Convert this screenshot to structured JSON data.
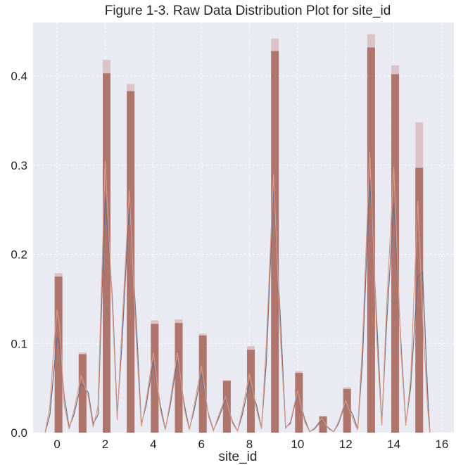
{
  "chart_data": {
    "type": "bar",
    "title": "Figure 1-3.  Raw Data Distribution Plot for site_id",
    "xlabel": "site_id",
    "ylabel": "",
    "xlim": [
      -1,
      16.5
    ],
    "ylim": [
      0,
      0.46
    ],
    "x_ticks": [
      0,
      2,
      4,
      6,
      8,
      10,
      12,
      14,
      16
    ],
    "y_ticks": [
      0.0,
      0.1,
      0.2,
      0.3,
      0.4
    ],
    "y_tick_labels": [
      "0.0",
      "0.1",
      "0.2",
      "0.3",
      "0.4"
    ],
    "grid": true,
    "background": "#eaeaf2",
    "categories": [
      0,
      1,
      2,
      3,
      4,
      5,
      6,
      7,
      8,
      9,
      10,
      11,
      12,
      13,
      14,
      15
    ],
    "series": [
      {
        "color": "#a96d63",
        "values": [
          0.175,
          0.088,
          0.403,
          0.383,
          0.122,
          0.123,
          0.109,
          0.058,
          0.093,
          0.428,
          0.067,
          0.018,
          0.049,
          0.432,
          0.402,
          0.297
        ]
      },
      {
        "color": "#d9bcbf",
        "values": [
          0.179,
          0.09,
          0.418,
          0.391,
          0.126,
          0.127,
          0.111,
          0.059,
          0.097,
          0.442,
          0.069,
          0.019,
          0.051,
          0.447,
          0.412,
          0.348
        ]
      }
    ],
    "kde_lines": [
      {
        "color": "#6a6f86",
        "x": [
          -0.5,
          -0.3,
          -0.1,
          0,
          0.1,
          0.3,
          0.5,
          0.7,
          1,
          1.3,
          1.5,
          1.7,
          2,
          2.3,
          2.5,
          2.7,
          3,
          3.3,
          3.5,
          3.7,
          4,
          4.3,
          4.5,
          4.7,
          5,
          5.3,
          5.5,
          5.7,
          6,
          6.3,
          6.5,
          6.7,
          7,
          7.3,
          7.5,
          7.7,
          8,
          8.3,
          8.5,
          8.7,
          9,
          9.3,
          9.5,
          9.7,
          10,
          10.3,
          10.5,
          10.7,
          11,
          11.3,
          11.5,
          11.7,
          12,
          12.3,
          12.5,
          12.7,
          13,
          13.3,
          13.5,
          13.7,
          14,
          14.3,
          14.5,
          14.7,
          15,
          15.2,
          15.4,
          15.5
        ],
        "y": [
          0.0,
          0.02,
          0.08,
          0.107,
          0.1,
          0.04,
          0.006,
          0.02,
          0.055,
          0.045,
          0.01,
          0.02,
          0.265,
          0.15,
          0.02,
          0.1,
          0.257,
          0.12,
          0.01,
          0.03,
          0.08,
          0.03,
          0.004,
          0.03,
          0.082,
          0.03,
          0.004,
          0.025,
          0.065,
          0.02,
          0.003,
          0.015,
          0.037,
          0.012,
          0.002,
          0.02,
          0.056,
          0.03,
          0.005,
          0.08,
          0.273,
          0.12,
          0.006,
          0.01,
          0.045,
          0.015,
          0.001,
          0.004,
          0.014,
          0.005,
          0.001,
          0.01,
          0.034,
          0.02,
          0.004,
          0.08,
          0.285,
          0.12,
          0.01,
          0.12,
          0.257,
          0.1,
          0.01,
          0.05,
          0.175,
          0.18,
          0.05,
          0.0
        ]
      },
      {
        "color": "#d99a86",
        "x": [
          -0.5,
          -0.3,
          -0.1,
          0,
          0.1,
          0.3,
          0.5,
          0.7,
          1,
          1.3,
          1.5,
          1.7,
          2,
          2.3,
          2.5,
          2.7,
          3,
          3.3,
          3.5,
          3.7,
          4,
          4.3,
          4.5,
          4.7,
          5,
          5.3,
          5.5,
          5.7,
          6,
          6.3,
          6.5,
          6.7,
          7,
          7.3,
          7.5,
          7.7,
          8,
          8.3,
          8.5,
          8.7,
          9,
          9.3,
          9.5,
          9.7,
          10,
          10.3,
          10.5,
          10.7,
          11,
          11.3,
          11.5,
          11.7,
          12,
          12.3,
          12.5,
          12.7,
          13,
          13.3,
          13.5,
          13.7,
          14,
          14.3,
          14.5,
          14.7,
          15,
          15.2,
          15.4,
          15.5
        ],
        "y": [
          0.0,
          0.03,
          0.11,
          0.138,
          0.12,
          0.03,
          0.004,
          0.025,
          0.064,
          0.04,
          0.006,
          0.03,
          0.305,
          0.14,
          0.014,
          0.12,
          0.272,
          0.1,
          0.007,
          0.035,
          0.09,
          0.025,
          0.003,
          0.035,
          0.09,
          0.025,
          0.003,
          0.03,
          0.075,
          0.018,
          0.002,
          0.018,
          0.04,
          0.01,
          0.002,
          0.025,
          0.066,
          0.025,
          0.004,
          0.1,
          0.29,
          0.1,
          0.005,
          0.012,
          0.047,
          0.012,
          0.001,
          0.005,
          0.016,
          0.004,
          0.001,
          0.012,
          0.036,
          0.015,
          0.003,
          0.1,
          0.315,
          0.1,
          0.008,
          0.14,
          0.298,
          0.09,
          0.008,
          0.06,
          0.26,
          0.13,
          0.03,
          0.0
        ]
      }
    ]
  }
}
